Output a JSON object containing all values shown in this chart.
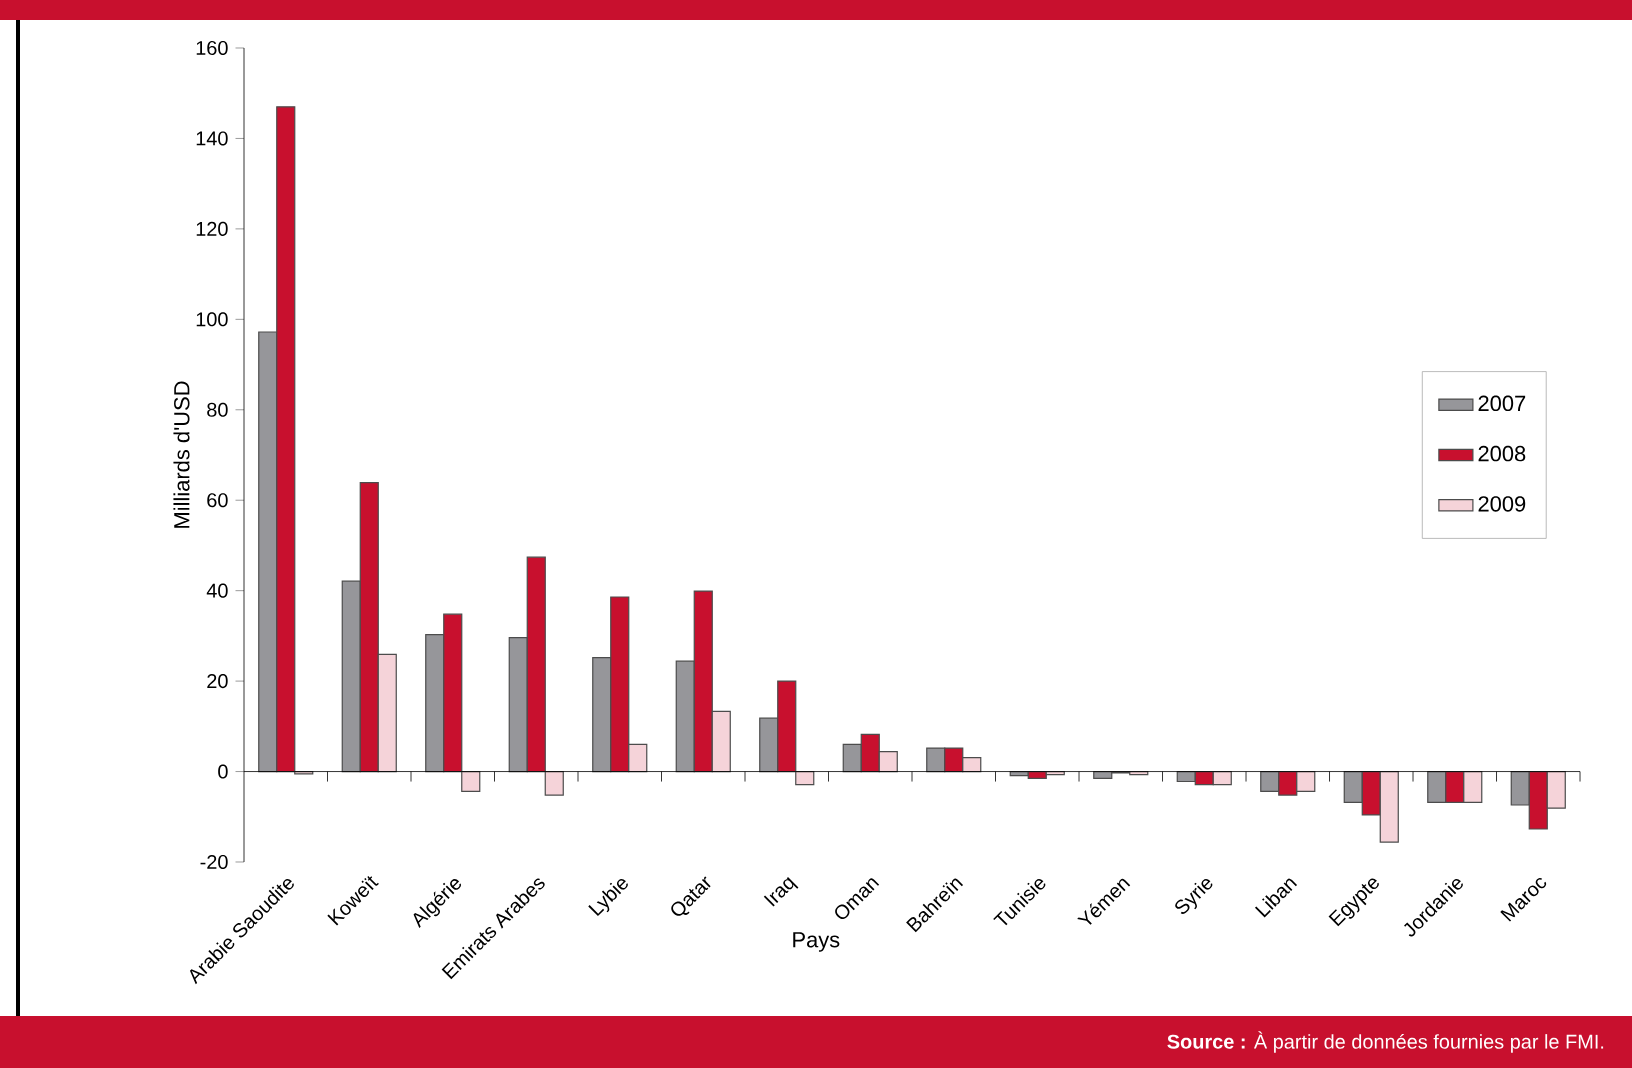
{
  "chart_data": {
    "type": "bar",
    "xlabel": "Pays",
    "ylabel": "Milliards d'USD",
    "categories": [
      "Arabie Saoudite",
      "Koweït",
      "Algérie",
      "Emirats Arabes",
      "Lybie",
      "Qatar",
      "Iraq",
      "Oman",
      "Bahreïn",
      "Tunisie",
      "Yémen",
      "Syrie",
      "Liban",
      "Egypte",
      "Jordanie",
      "Maroc"
    ],
    "series": [
      {
        "name": "2007",
        "color": "#96969a",
        "values": [
          97.2,
          42.1,
          30.3,
          29.6,
          25.2,
          24.4,
          11.8,
          6.0,
          5.2,
          -0.9,
          -1.5,
          -2.2,
          -4.4,
          -6.8,
          -6.8,
          -7.4
        ]
      },
      {
        "name": "2008",
        "color": "#c8102e",
        "values": [
          147,
          63.9,
          34.8,
          47.4,
          38.6,
          39.9,
          20,
          8.2,
          5.2,
          -1.5,
          -0.3,
          -2.9,
          -5.2,
          -9.6,
          -6.8,
          -12.7
        ]
      },
      {
        "name": "2009",
        "color": "#f5d3d9",
        "values": [
          -0.5,
          25.9,
          -4.4,
          -5.2,
          6.0,
          13.3,
          -2.9,
          4.4,
          3.1,
          -0.7,
          -0.7,
          -2.9,
          -4.4,
          -15.6,
          -6.8,
          -8.1
        ]
      }
    ],
    "ylim": [
      -20,
      160
    ],
    "yticks": [
      -20,
      0,
      20,
      40,
      60,
      80,
      100,
      120,
      140,
      160
    ],
    "legend": "right",
    "annotations": [
      "**Source :** À partir de données fournies par le FMI."
    ]
  }
}
